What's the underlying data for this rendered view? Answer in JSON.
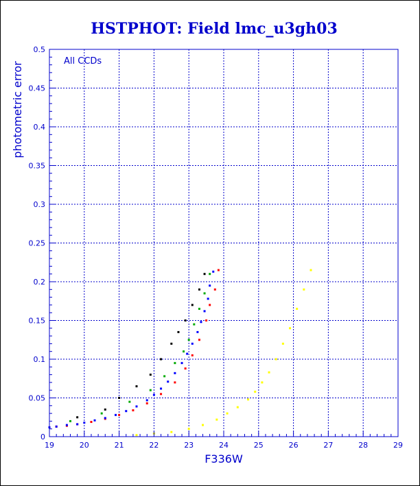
{
  "chart_data": {
    "type": "scatter",
    "title": "HSTPHOT: Field lmc_u3gh03",
    "xlabel": "F336W",
    "ylabel": "photometric error",
    "annotation": "All CCDs",
    "xlim": [
      19,
      29
    ],
    "ylim": [
      0,
      0.5
    ],
    "xticks": [
      "19",
      "20",
      "21",
      "22",
      "23",
      "24",
      "25",
      "26",
      "27",
      "28",
      "29"
    ],
    "yticks": [
      "0",
      "0.05",
      "0.1",
      "0.15",
      "0.2",
      "0.25",
      "0.3",
      "0.35",
      "0.4",
      "0.45",
      "0.5"
    ],
    "grid": true,
    "legend": "none",
    "colors": {
      "axes": "#0000cc",
      "grid": "#0000cc",
      "ccd_red": "#ff0000",
      "ccd_blue": "#0000ff",
      "ccd_green": "#00aa00",
      "ccd_black": "#000000",
      "ccd_yellow": "#ffff00"
    },
    "series": [
      {
        "color": "#ff0000",
        "x": [
          19.0,
          19.2,
          19.5,
          19.8,
          20.2,
          20.6,
          21.0,
          21.4,
          21.8,
          22.2,
          22.6,
          22.9,
          23.1,
          23.3,
          23.5,
          23.6,
          23.75,
          23.85
        ],
        "y": [
          0.012,
          0.013,
          0.014,
          0.016,
          0.019,
          0.023,
          0.028,
          0.034,
          0.043,
          0.055,
          0.07,
          0.088,
          0.105,
          0.125,
          0.15,
          0.17,
          0.19,
          0.215
        ]
      },
      {
        "color": "#0000ff",
        "x": [
          19.0,
          19.2,
          19.5,
          19.8,
          20.0,
          20.3,
          20.6,
          20.9,
          21.2,
          21.5,
          21.8,
          22.0,
          22.2,
          22.4,
          22.6,
          22.8,
          22.95,
          23.1,
          23.25,
          23.35,
          23.45,
          23.55,
          23.6,
          23.7
        ],
        "y": [
          0.012,
          0.013,
          0.015,
          0.016,
          0.018,
          0.021,
          0.024,
          0.028,
          0.033,
          0.039,
          0.047,
          0.054,
          0.062,
          0.071,
          0.082,
          0.095,
          0.107,
          0.12,
          0.135,
          0.148,
          0.162,
          0.178,
          0.195,
          0.213
        ]
      },
      {
        "color": "#00aa00",
        "x": [
          19.6,
          20.5,
          21.3,
          21.9,
          22.3,
          22.6,
          22.85,
          23.0,
          23.15,
          23.3,
          23.45,
          23.6
        ],
        "y": [
          0.02,
          0.03,
          0.045,
          0.06,
          0.078,
          0.095,
          0.11,
          0.125,
          0.145,
          0.165,
          0.185,
          0.21
        ]
      },
      {
        "color": "#000000",
        "x": [
          19.8,
          20.6,
          21.0,
          21.5,
          21.9,
          22.2,
          22.5,
          22.7,
          22.9,
          23.1,
          23.3,
          23.45
        ],
        "y": [
          0.025,
          0.035,
          0.05,
          0.065,
          0.08,
          0.1,
          0.12,
          0.135,
          0.15,
          0.17,
          0.19,
          0.21
        ]
      },
      {
        "color": "#ffff00",
        "x": [
          21.5,
          22.0,
          22.5,
          23.0,
          23.4,
          23.8,
          24.1,
          24.4,
          24.7,
          24.9,
          25.1,
          25.3,
          25.5,
          25.7,
          25.9,
          26.1,
          26.3,
          26.5
        ],
        "y": [
          0.002,
          0.004,
          0.006,
          0.01,
          0.015,
          0.022,
          0.03,
          0.038,
          0.048,
          0.058,
          0.07,
          0.083,
          0.1,
          0.12,
          0.14,
          0.165,
          0.19,
          0.215
        ]
      }
    ]
  }
}
